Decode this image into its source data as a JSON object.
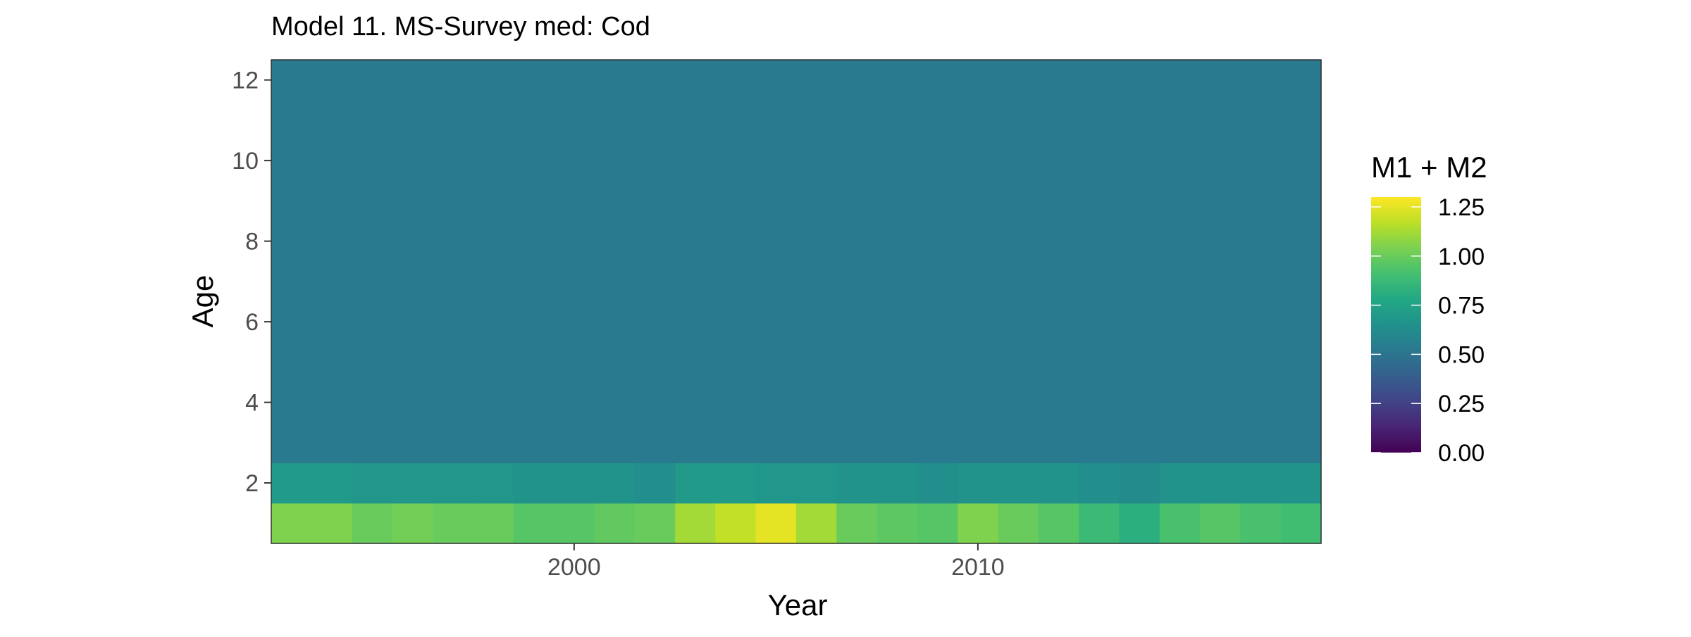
{
  "chart_data": {
    "type": "heatmap",
    "title": "Model 11. MS-Survey med: Cod",
    "xlabel": "Year",
    "ylabel": "Age",
    "x": [
      1993,
      1994,
      1995,
      1996,
      1997,
      1998,
      1999,
      2000,
      2001,
      2002,
      2003,
      2004,
      2005,
      2006,
      2007,
      2008,
      2009,
      2010,
      2011,
      2012,
      2013,
      2014,
      2015,
      2016,
      2017,
      2018
    ],
    "y": [
      1,
      2,
      3,
      4,
      5,
      6,
      7,
      8,
      9,
      10,
      11,
      12
    ],
    "xlim": [
      1992.5,
      2018.5
    ],
    "ylim": [
      0.5,
      12.5
    ],
    "x_ticks": [
      2000,
      2010
    ],
    "x_tick_labels": [
      "2000",
      "2010"
    ],
    "y_ticks": [
      2,
      4,
      6,
      8,
      10,
      12
    ],
    "y_tick_labels": [
      "2",
      "4",
      "6",
      "8",
      "10",
      "12"
    ],
    "values_by_age": {
      "1": [
        1.05,
        1.05,
        1.0,
        1.02,
        1.0,
        1.0,
        0.95,
        0.95,
        0.98,
        1.0,
        1.12,
        1.18,
        1.25,
        1.12,
        1.0,
        0.97,
        0.95,
        1.05,
        1.0,
        0.95,
        0.88,
        0.82,
        0.92,
        0.95,
        0.92,
        0.9
      ],
      "2": [
        0.7,
        0.7,
        0.68,
        0.68,
        0.68,
        0.68,
        0.66,
        0.66,
        0.66,
        0.64,
        0.7,
        0.7,
        0.68,
        0.68,
        0.66,
        0.66,
        0.64,
        0.66,
        0.66,
        0.66,
        0.64,
        0.62,
        0.66,
        0.66,
        0.66,
        0.66
      ],
      "3-12": 0.53
    },
    "colorbar": {
      "title": "M1 + M2",
      "range": [
        0,
        1.3
      ],
      "ticks": [
        0,
        0.25,
        0.5,
        0.75,
        1.0,
        1.25
      ],
      "tick_labels": [
        "0.00",
        "0.25",
        "0.50",
        "0.75",
        "1.00",
        "1.25"
      ],
      "colormap": "viridis"
    },
    "grid": false,
    "legend_position": "right"
  }
}
